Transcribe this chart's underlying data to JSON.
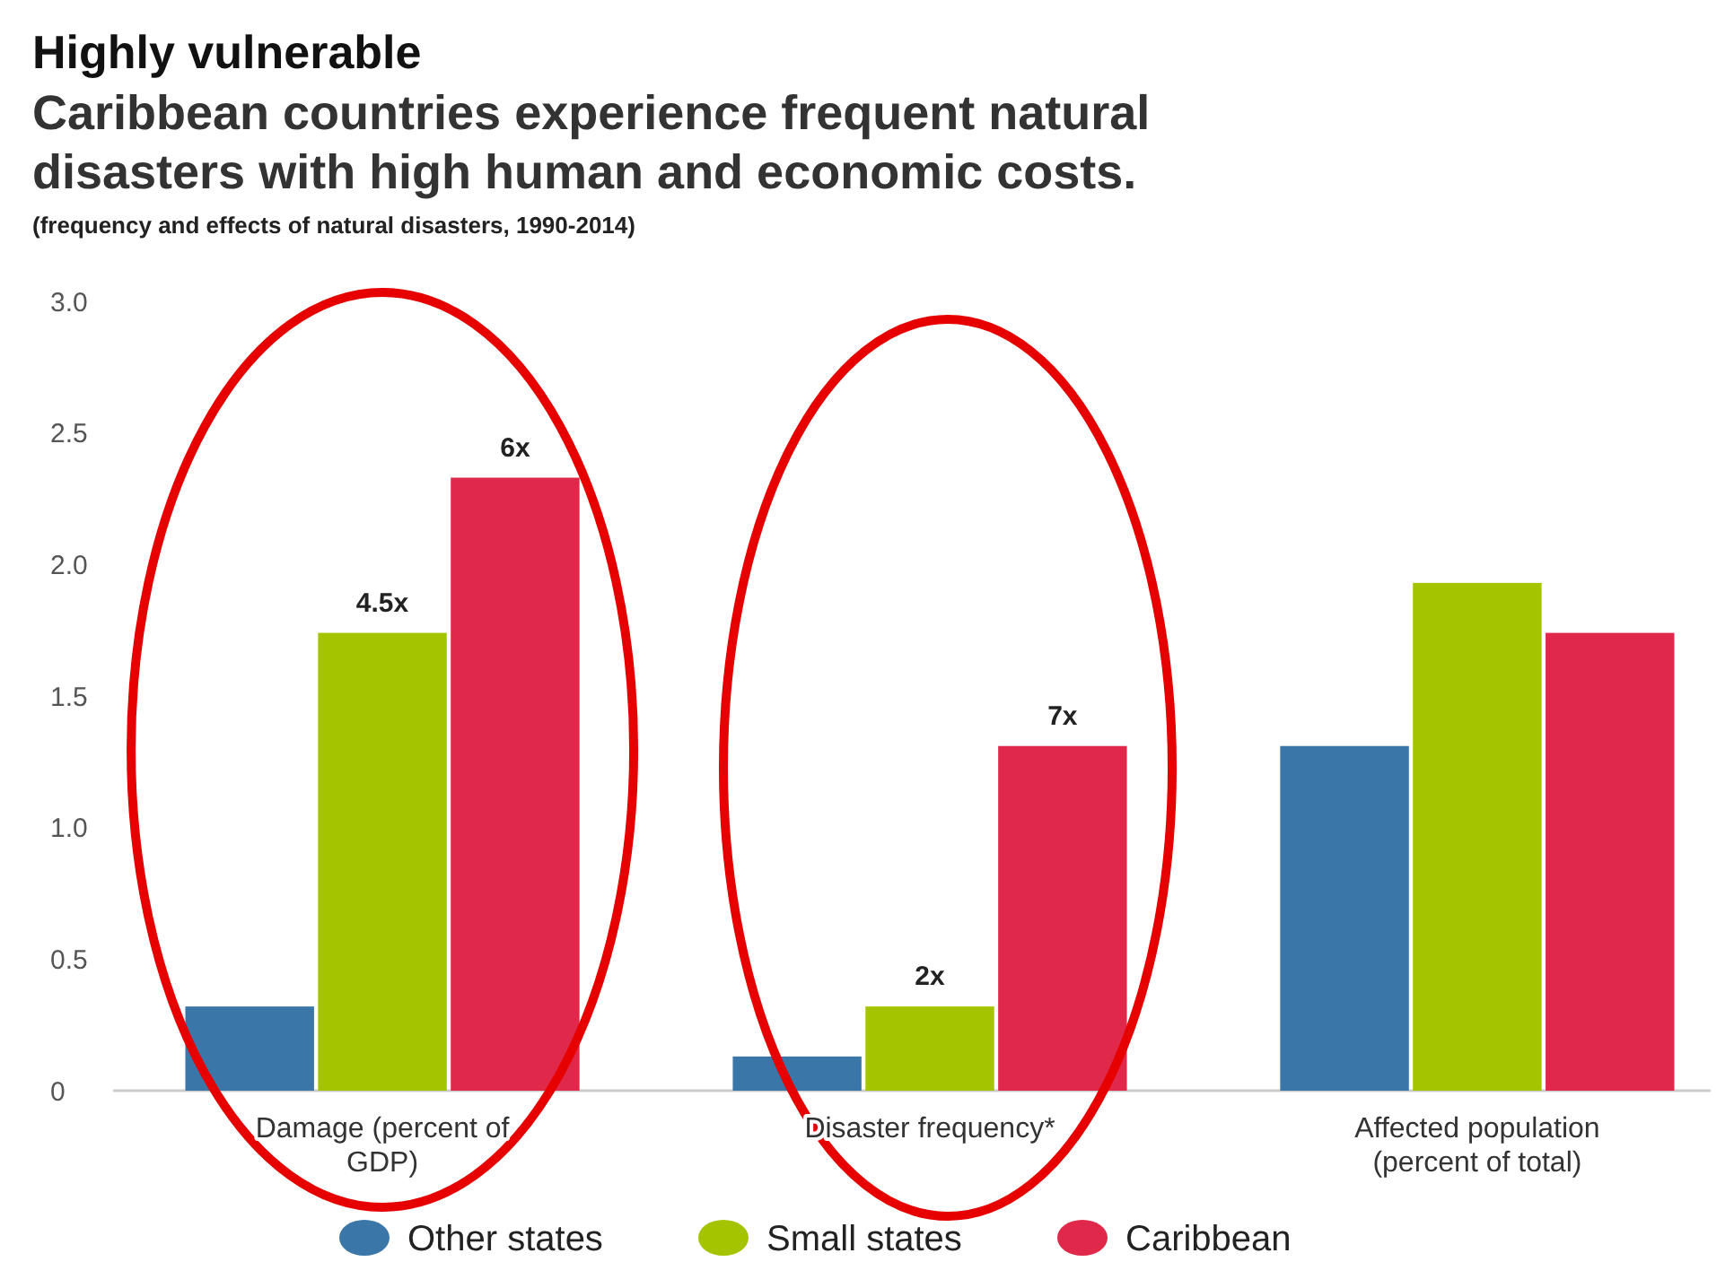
{
  "chart_data": {
    "type": "bar",
    "title": "Highly vulnerable",
    "subtitle": "Caribbean countries experience frequent natural disasters with high human and economic costs.",
    "annotations": [
      "(frequency and effects of natural disasters, 1990-2014)",
      "4.5x",
      "6x",
      "2x",
      "7x"
    ],
    "categories": [
      "Damage (percent of GDP)",
      "Disaster frequency*",
      "Affected population (percent of total)"
    ],
    "series": [
      {
        "name": "Other states",
        "color": "#3a77a8",
        "values": [
          0.32,
          0.13,
          1.31
        ]
      },
      {
        "name": "Small states",
        "color": "#a5c400",
        "values": [
          1.74,
          0.32,
          1.93
        ]
      },
      {
        "name": "Caribbean",
        "color": "#e0294a",
        "values": [
          2.33,
          1.31,
          1.74
        ]
      }
    ],
    "ylim": [
      0,
      3
    ],
    "yticks": [
      0,
      {
        "value": 0.5,
        "label": "0.5"
      },
      {
        "value": 1,
        "label": "1.0"
      },
      {
        "value": 1.5,
        "label": "1.5"
      },
      {
        "value": 2,
        "label": "2.0"
      },
      {
        "value": 2.5,
        "label": "2.5"
      },
      {
        "value": 3,
        "label": "3.0"
      }
    ],
    "grid": false,
    "legend": "bottom"
  }
}
